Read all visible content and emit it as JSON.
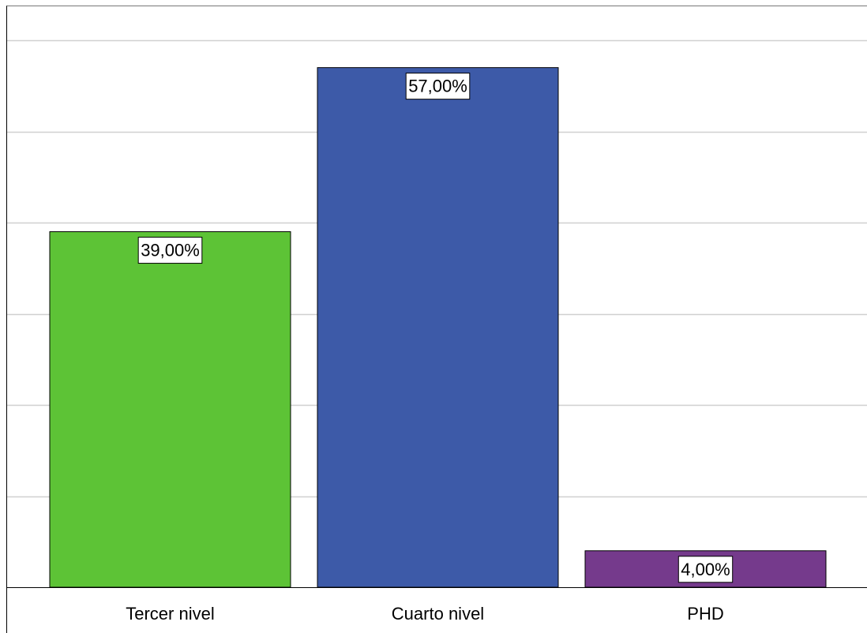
{
  "chart_data": {
    "type": "bar",
    "categories": [
      "Tercer nivel",
      "Cuarto nivel",
      "PHD"
    ],
    "values": [
      39,
      57,
      4
    ],
    "data_labels": [
      "39,00%",
      "57,00%",
      "4,00%"
    ],
    "colors": [
      "#5dc336",
      "#3d5aa8",
      "#753a8c"
    ],
    "ylim": [
      0,
      60
    ],
    "grid": true,
    "title": "",
    "xlabel": "",
    "ylabel": ""
  }
}
